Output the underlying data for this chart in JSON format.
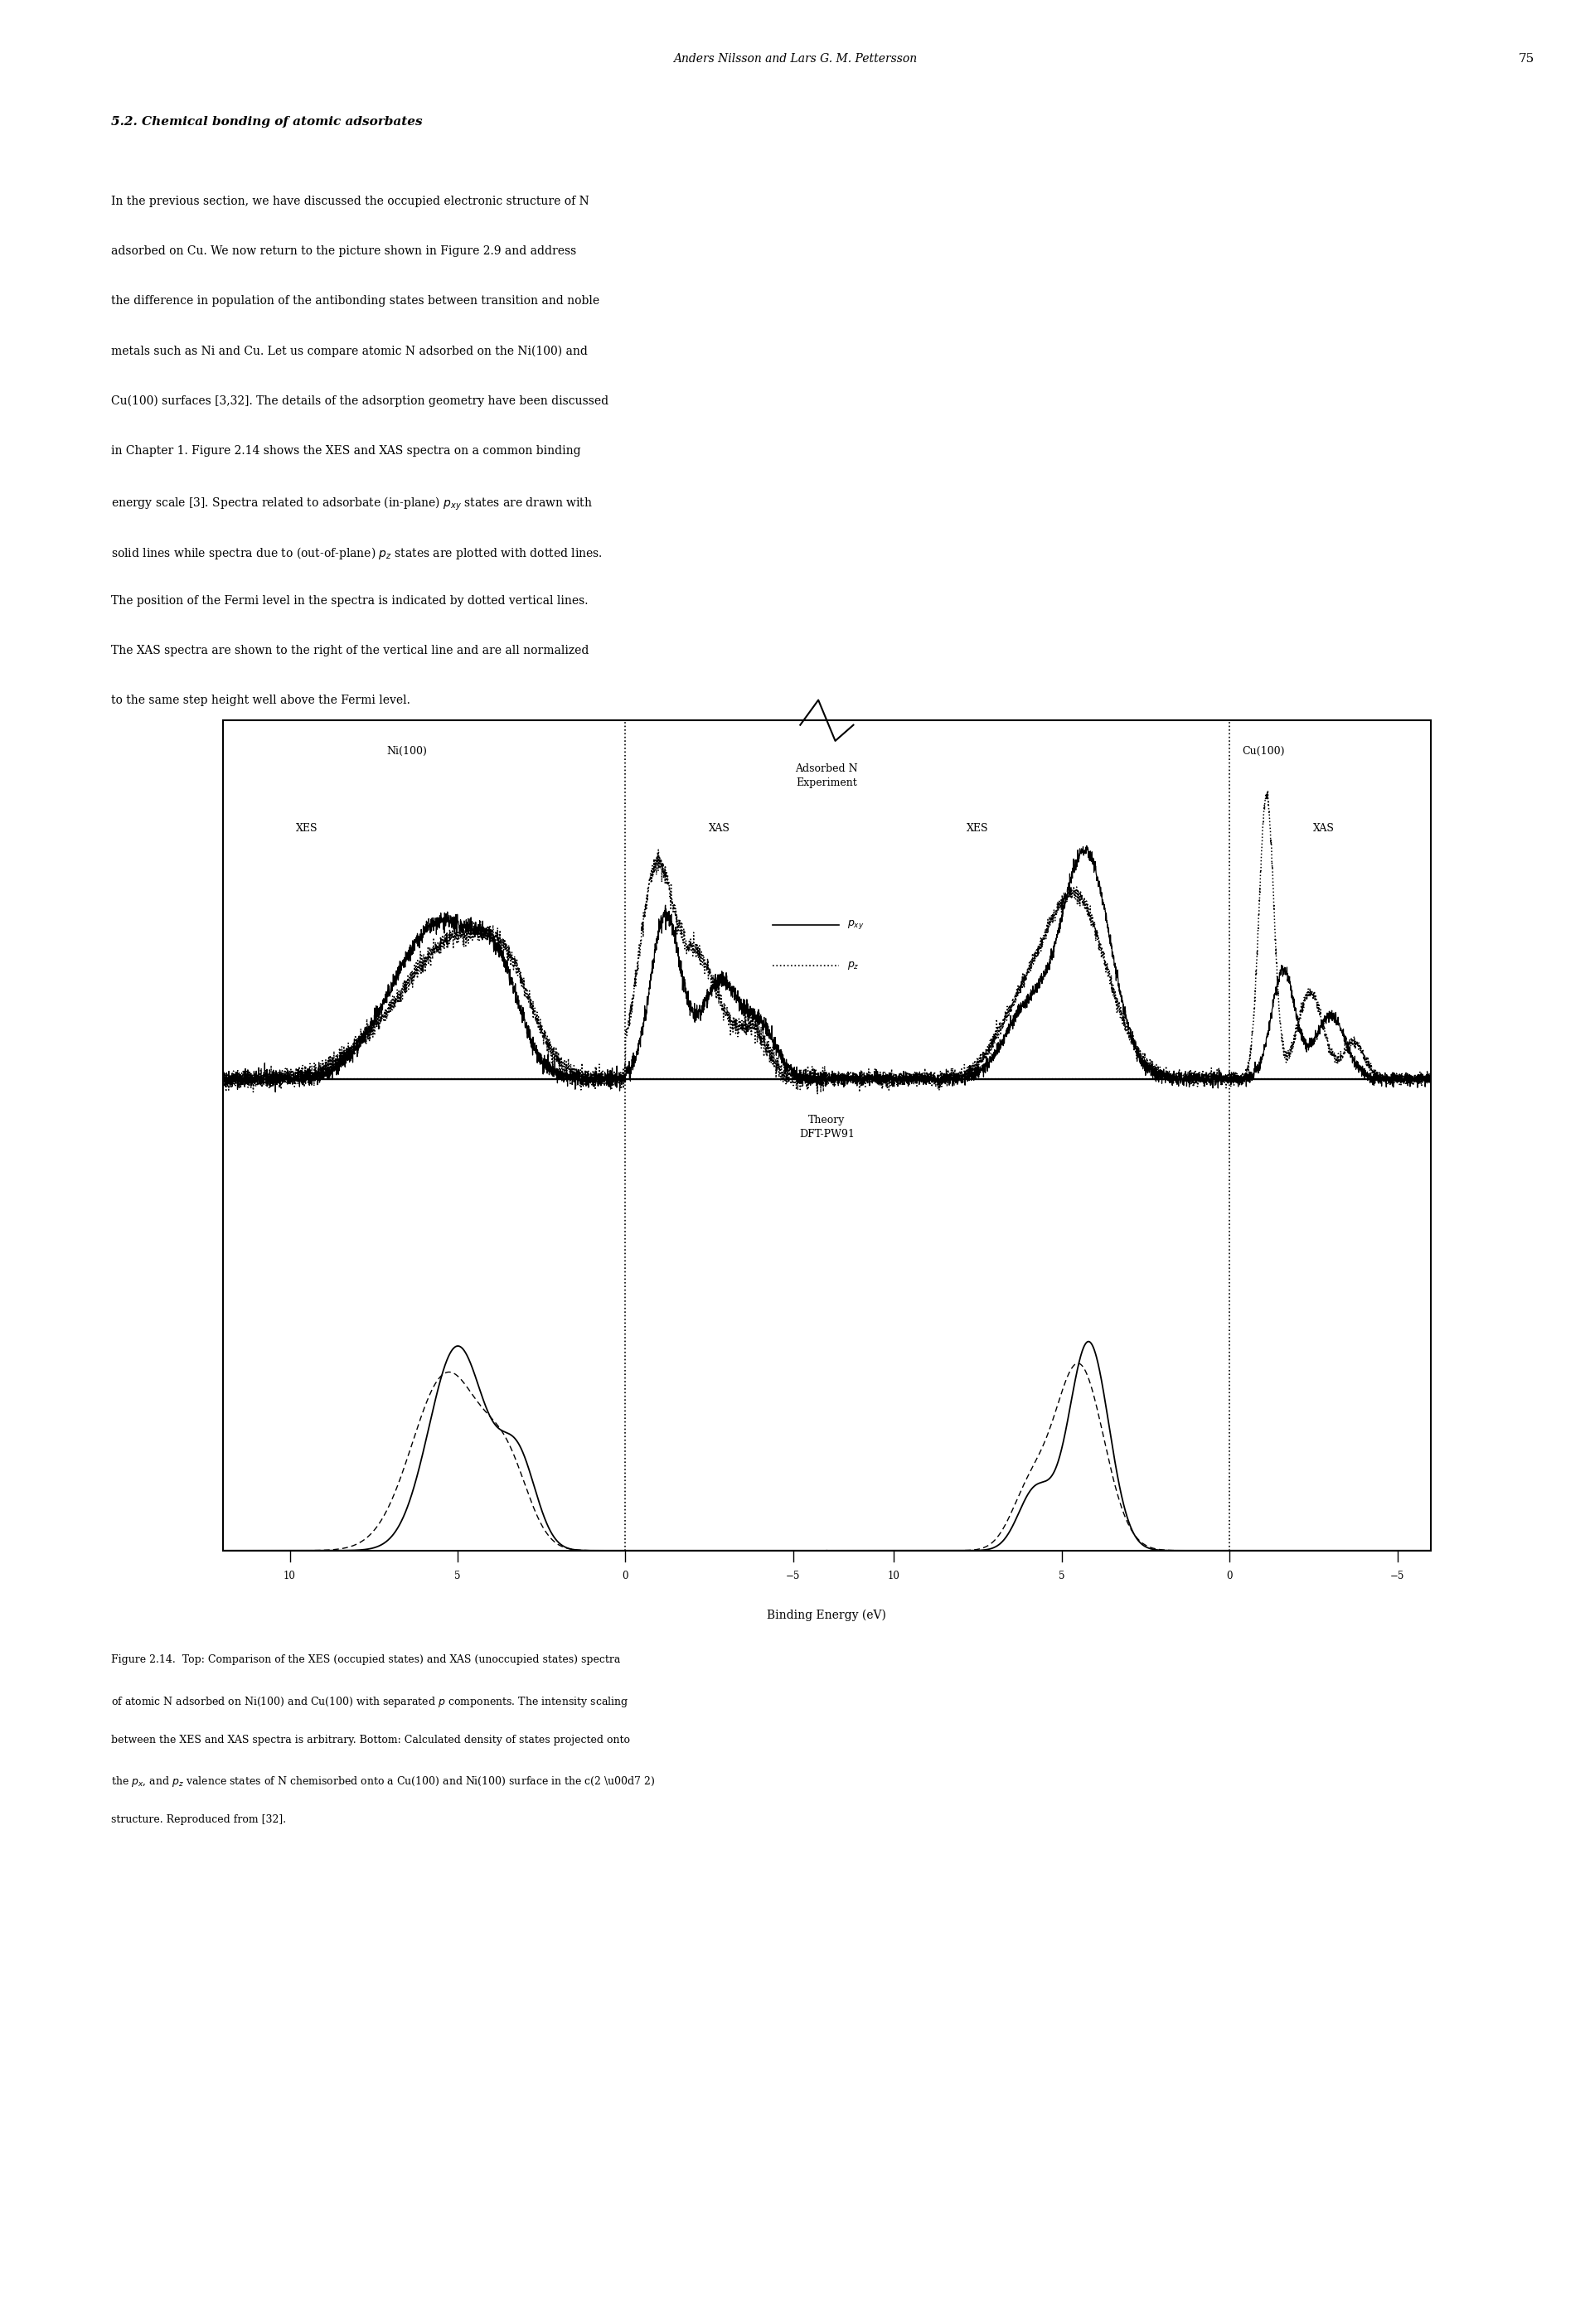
{
  "page_header_text": "Anders Nilsson and Lars G. M. Pettersson",
  "page_number": "75",
  "section_title": "5.2. Chemical bonding of atomic adsorbates",
  "axis_label": "Binding Energy (eV)",
  "fig_bgcolor": "#ffffff",
  "text_color": "#000000",
  "paragraph_lines": [
    "In the previous section, we have discussed the occupied electronic structure of N",
    "adsorbed on Cu. We now return to the picture shown in Figure 2.9 and address",
    "the difference in population of the antibonding states between transition and noble",
    "metals such as Ni and Cu. Let us compare atomic N adsorbed on the Ni(100) and",
    "Cu(100) surfaces [3,32]. The details of the adsorption geometry have been discussed",
    "in Chapter 1. Figure 2.14 shows the XES and XAS spectra on a common binding",
    "energy scale [3]. Spectra related to adsorbate (in-plane) $p_{xy}$ states are drawn with",
    "solid lines while spectra due to (out-of-plane) $p_z$ states are plotted with dotted lines.",
    "The position of the Fermi level in the spectra is indicated by dotted vertical lines.",
    "The XAS spectra are shown to the right of the vertical line and are all normalized",
    "to the same step height well above the Fermi level."
  ],
  "caption_lines": [
    "Figure 2.14.  Top: Comparison of the XES (occupied states) and XAS (unoccupied states) spectra",
    "of atomic N adsorbed on Ni(100) and Cu(100) with separated $p$ components. The intensity scaling",
    "between the XES and XAS spectra is arbitrary. Bottom: Calculated density of states projected onto",
    "the $p_x$, and $p_z$ valence states of N chemisorbed onto a Cu(100) and Ni(100) surface in the c(2 \\u00d7 2)",
    "structure. Reproduced from [32]."
  ]
}
